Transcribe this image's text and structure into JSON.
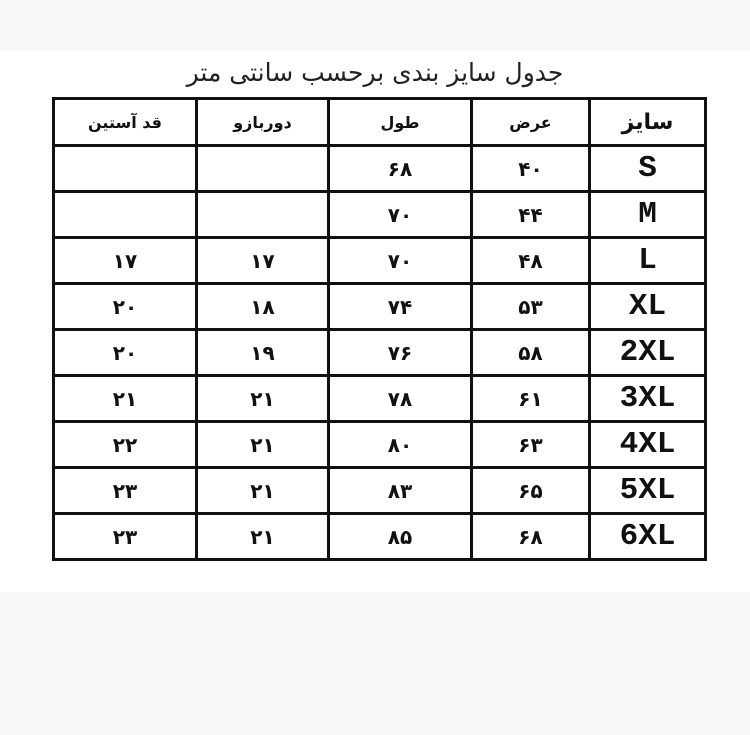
{
  "title": "جدول سایز بندی برحسب سانتی متر",
  "headers": {
    "size": "سایز",
    "width": "عرض",
    "length": "طول",
    "arm": "دوربازو",
    "sleeve": "قد آستین"
  },
  "rows": [
    {
      "size": "S",
      "width": "۴۰",
      "length": "۶۸",
      "arm": "",
      "sleeve": ""
    },
    {
      "size": "M",
      "width": "۴۴",
      "length": "۷۰",
      "arm": "",
      "sleeve": ""
    },
    {
      "size": "L",
      "width": "۴۸",
      "length": "۷۰",
      "arm": "۱۷",
      "sleeve": "۱۷"
    },
    {
      "size": "XL",
      "width": "۵۳",
      "length": "۷۴",
      "arm": "۱۸",
      "sleeve": "۲۰"
    },
    {
      "size": "2XL",
      "width": "۵۸",
      "length": "۷۶",
      "arm": "۱۹",
      "sleeve": "۲۰"
    },
    {
      "size": "3XL",
      "width": "۶۱",
      "length": "۷۸",
      "arm": "۲۱",
      "sleeve": "۲۱"
    },
    {
      "size": "4XL",
      "width": "۶۳",
      "length": "۸۰",
      "arm": "۲۱",
      "sleeve": "۲۲"
    },
    {
      "size": "5XL",
      "width": "۶۵",
      "length": "۸۳",
      "arm": "۲۱",
      "sleeve": "۲۳"
    },
    {
      "size": "6XL",
      "width": "۶۸",
      "length": "۸۵",
      "arm": "۲۱",
      "sleeve": "۲۳"
    }
  ]
}
